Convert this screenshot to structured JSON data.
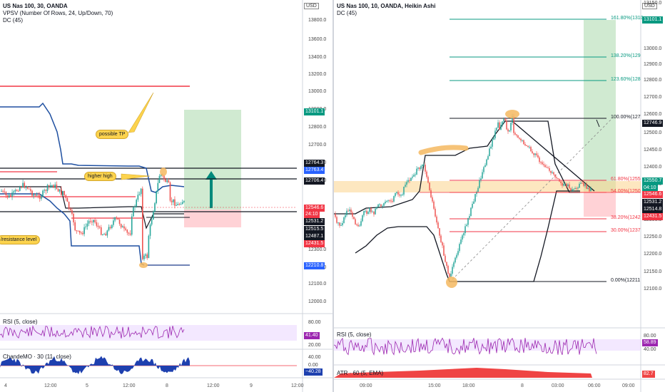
{
  "left": {
    "header": {
      "symbol": "US Nas 100, 30, OANDA",
      "vpsv": "VPSV (Number Of Rows, 24, Up/Down, 70)",
      "dc": "DC (45)"
    },
    "currency": "USD",
    "price_axis": [
      "13800.0",
      "13600.0",
      "13400.0",
      "13200.0",
      "13000.0",
      "12900.0",
      "12800.0",
      "12700.0",
      "12600.0",
      "12400.0",
      "12300.0",
      "12200.0",
      "12100.0",
      "12000.0"
    ],
    "price_tags": [
      {
        "text": "13101.1",
        "color": "#089981"
      },
      {
        "text": "12764.3",
        "color": "#131722"
      },
      {
        "text": "12763.4",
        "color": "#2962ff"
      },
      {
        "text": "12706.4",
        "color": "#131722"
      },
      {
        "text": "12546.6",
        "color": "#f23645"
      },
      {
        "text": "24:10",
        "color": "#f23645"
      },
      {
        "text": "12531.2",
        "color": "#131722"
      },
      {
        "text": "12515.5",
        "color": "#131722"
      },
      {
        "text": "12487.1",
        "color": "#131722"
      },
      {
        "text": "12431.5",
        "color": "#f23645"
      },
      {
        "text": "12210.8",
        "color": "#2962ff"
      }
    ],
    "callouts": {
      "possible_tp": "possible TP",
      "higher_high": "higher high",
      "sr_level": "/resistance level"
    },
    "rsi": {
      "title": "RSI (5, close)",
      "axis": [
        "80.00",
        "41.40",
        "20.00"
      ],
      "value": "41.40"
    },
    "chande": {
      "title": "ChandeMO · 30 (11, close)",
      "axis": [
        "40.00",
        "0.00",
        "−40.28"
      ],
      "value": "−40.28"
    },
    "time_axis": [
      "4",
      "12:00",
      "5",
      "12:00",
      "8",
      "12:00",
      "9",
      "12:00"
    ]
  },
  "right": {
    "header": {
      "symbol": "US Nas 100, 10, OANDA, Heikin Ashi",
      "dc": "DC (45)"
    },
    "currency": "USD",
    "price_axis": [
      "13150.0",
      "13000.0",
      "12900.0",
      "12800.0",
      "12700.0",
      "12600.0",
      "12500.0",
      "12450.0",
      "12400.0",
      "12350.0",
      "12300.0",
      "12250.0",
      "12200.0",
      "12150.0",
      "12100.0"
    ],
    "price_tags": [
      {
        "text": "13101.1",
        "color": "#089981"
      },
      {
        "text": "12746.9",
        "color": "#131722"
      },
      {
        "text": "12550.7",
        "color": "#089981"
      },
      {
        "text": "04:10",
        "color": "#089981"
      },
      {
        "text": "12546.6",
        "color": "#f23645"
      },
      {
        "text": "12531.2",
        "color": "#131722"
      },
      {
        "text": "12514.8",
        "color": "#131722"
      },
      {
        "text": "12431.5",
        "color": "#f23645"
      }
    ],
    "fib_levels": [
      {
        "label": "161.80%(1310",
        "color": "#089981"
      },
      {
        "label": "138.20%(129",
        "color": "#089981"
      },
      {
        "label": "123.60%(128",
        "color": "#089981"
      },
      {
        "label": "100.00%(127",
        "color": "#131722"
      },
      {
        "label": "61.80%(1255",
        "color": "#f23645"
      },
      {
        "label": "54.00%(1250",
        "color": "#f23645"
      },
      {
        "label": "38.20%(1242",
        "color": "#f23645"
      },
      {
        "label": "30.00%(1237",
        "color": "#f23645"
      },
      {
        "label": "0.00%(12211",
        "color": "#131722"
      }
    ],
    "rsi": {
      "title": "RSI (5, close)",
      "axis": [
        "80.00",
        "58.89",
        "40.00"
      ],
      "value": "58.89"
    },
    "atr": {
      "title": "ATR · 60 (5, EMA)",
      "value": "82.7"
    },
    "time_axis": [
      "09:00",
      "15:00",
      "18:00",
      "8",
      "03:00",
      "06:00",
      "09:00"
    ]
  }
}
